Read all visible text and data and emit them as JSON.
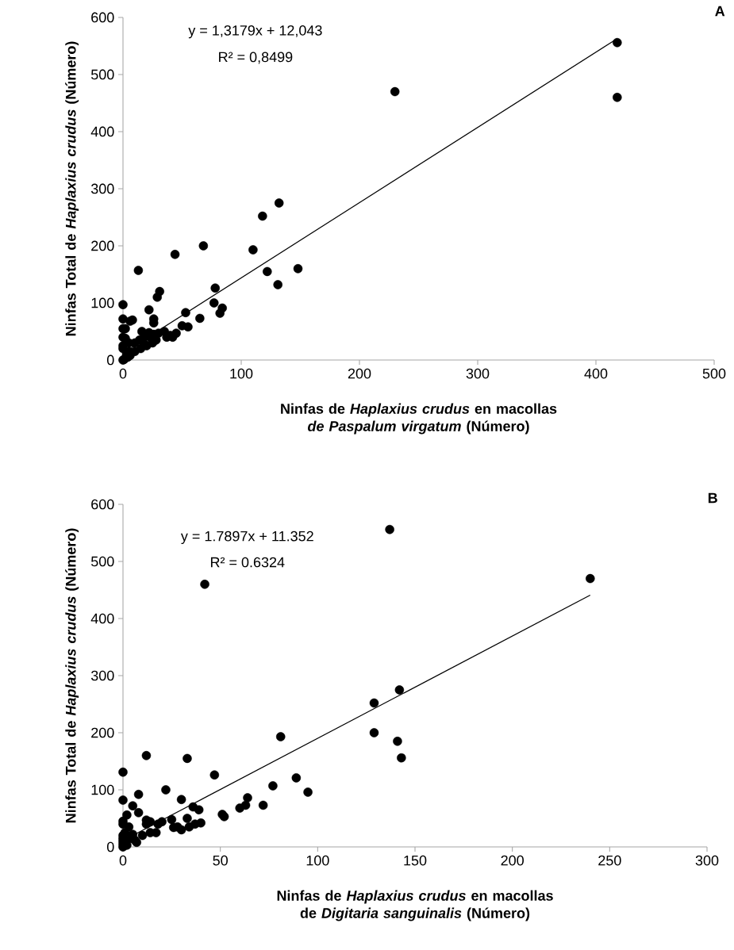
{
  "chart_data": [
    {
      "type": "scatter",
      "title": "A",
      "xlabel": "Ninfas de *Haplaxius crudus* en macollas *de Paspalum virgatum* (Número)",
      "ylabel": "Ninfas Total de *Haplaxius crudus* (Número)",
      "annotations": [
        "y = 1,3179x + 12,043",
        "R² = 0,8499"
      ],
      "xlim": [
        0,
        500
      ],
      "ylim": [
        0,
        600
      ],
      "xticks": [
        0,
        100,
        200,
        300,
        400,
        500
      ],
      "yticks": [
        0,
        100,
        200,
        300,
        400,
        500,
        600
      ],
      "marker": "circle",
      "series": [
        {
          "color": "#000000",
          "x": [
            418,
            418,
            230,
            132,
            118,
            110,
            148,
            122,
            131,
            44,
            68,
            13,
            0,
            31,
            29,
            78,
            77,
            84,
            82,
            65,
            53,
            55,
            50,
            22,
            26,
            26,
            0,
            0,
            2,
            8,
            6,
            0,
            2,
            5,
            16,
            22,
            26,
            30,
            35,
            37,
            40,
            45,
            42,
            28,
            25,
            20,
            18,
            15,
            10,
            6,
            4,
            1,
            0,
            3,
            5,
            0,
            0,
            10,
            14,
            18,
            24
          ],
          "values": [
            556,
            460,
            470,
            275,
            252,
            193,
            160,
            155,
            132,
            185,
            200,
            157,
            97,
            120,
            110,
            126,
            100,
            91,
            82,
            73,
            83,
            58,
            60,
            88,
            72,
            65,
            72,
            55,
            55,
            70,
            68,
            40,
            38,
            30,
            50,
            48,
            45,
            47,
            50,
            40,
            43,
            47,
            40,
            35,
            30,
            25,
            28,
            20,
            15,
            8,
            5,
            1,
            0,
            10,
            15,
            20,
            25,
            30,
            35,
            40,
            38
          ]
        },
        {
          "type": "line",
          "marker": "none",
          "color": "#000000",
          "x": [
            0,
            418
          ],
          "values": [
            12,
            563
          ]
        }
      ]
    },
    {
      "type": "scatter",
      "title": "B",
      "xlabel": "Ninfas de *Haplaxius crudus* en macollas de *Digitaria sanguinalis* (Número)",
      "ylabel": "Ninfas Total de *Haplaxius crudus* (Número)",
      "annotations": [
        "y = 1.7897x + 11.352",
        "R² = 0.6324"
      ],
      "xlim": [
        0,
        300
      ],
      "ylim": [
        0,
        600
      ],
      "xticks": [
        0,
        50,
        100,
        150,
        200,
        250,
        300
      ],
      "yticks": [
        0,
        100,
        200,
        300,
        400,
        500,
        600
      ],
      "marker": "circle",
      "series": [
        {
          "color": "#000000",
          "x": [
            137,
            42,
            240,
            142,
            129,
            129,
            141,
            143,
            81,
            12,
            33,
            0,
            47,
            89,
            77,
            95,
            22,
            8,
            30,
            0,
            5,
            36,
            64,
            63,
            72,
            60,
            51,
            52,
            39,
            33,
            34,
            28,
            30,
            40,
            37,
            25,
            20,
            14,
            12,
            12,
            14,
            17,
            10,
            8,
            5,
            6,
            7,
            2,
            0,
            0,
            0,
            0,
            0,
            0,
            0,
            2,
            4,
            1,
            3,
            18,
            26
          ],
          "values": [
            556,
            460,
            470,
            275,
            252,
            200,
            185,
            156,
            193,
            160,
            155,
            131,
            126,
            121,
            107,
            96,
            100,
            92,
            83,
            82,
            72,
            70,
            86,
            73,
            73,
            68,
            57,
            53,
            65,
            50,
            35,
            35,
            30,
            42,
            40,
            48,
            44,
            44,
            47,
            40,
            25,
            25,
            20,
            60,
            22,
            12,
            8,
            56,
            45,
            40,
            20,
            15,
            10,
            5,
            0,
            3,
            15,
            25,
            35,
            40,
            34
          ]
        },
        {
          "type": "line",
          "marker": "none",
          "color": "#000000",
          "x": [
            0,
            240
          ],
          "values": [
            11,
            441
          ]
        }
      ]
    }
  ]
}
